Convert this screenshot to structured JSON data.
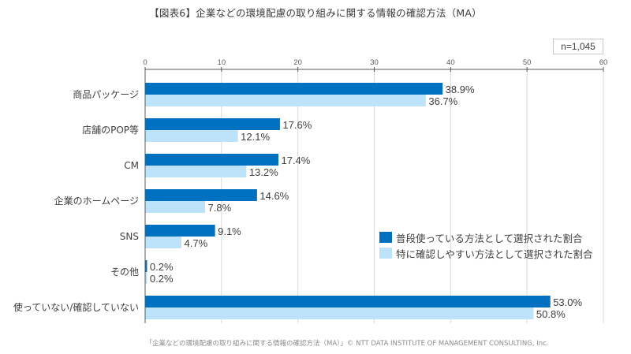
{
  "title": "【図表6】企業などの環境配慮の取り組みに関する情報の確認方法（MA）",
  "sample_size": "n=1,045",
  "footer": "「企業などの環境配慮の取り組みに関する情報の確認方法（MA）」© NTT DATA INSTITUTE OF MANAGEMENT CONSULTING, Inc.",
  "colors": {
    "series1": "#0070c0",
    "series2": "#bde3fb",
    "grid": "#d9d9d9",
    "axis": "#595959"
  },
  "chart_data": {
    "type": "bar",
    "orientation": "horizontal",
    "title": "【図表6】企業などの環境配慮の取り組みに関する情報の確認方法（MA）",
    "xlabel": "",
    "ylabel": "",
    "xlim": [
      0,
      60
    ],
    "x_ticks": [
      "0",
      "10",
      "20",
      "30",
      "40",
      "50",
      "60"
    ],
    "x_tick_values": [
      0,
      10,
      20,
      30,
      40,
      50,
      60
    ],
    "grid": true,
    "legend_position": "right",
    "categories": [
      "商品パッケージ",
      "店舗のPOP等",
      "CM",
      "企業のホームページ",
      "SNS",
      "その他",
      "使っていない/確認していない"
    ],
    "series": [
      {
        "name": "普段使っている方法として選択された割合",
        "values": [
          38.9,
          17.6,
          17.4,
          14.6,
          9.1,
          0.2,
          53.0
        ],
        "labels": [
          "38.9%",
          "17.6%",
          "17.4%",
          "14.6%",
          "9.1%",
          "0.2%",
          "53.0%"
        ]
      },
      {
        "name": "特に確認しやすい方法として選択された割合",
        "values": [
          36.7,
          12.1,
          13.2,
          7.8,
          4.7,
          0.2,
          50.8
        ],
        "labels": [
          "36.7%",
          "12.1%",
          "13.2%",
          "7.8%",
          "4.7%",
          "0.2%",
          "50.8%"
        ]
      }
    ]
  }
}
